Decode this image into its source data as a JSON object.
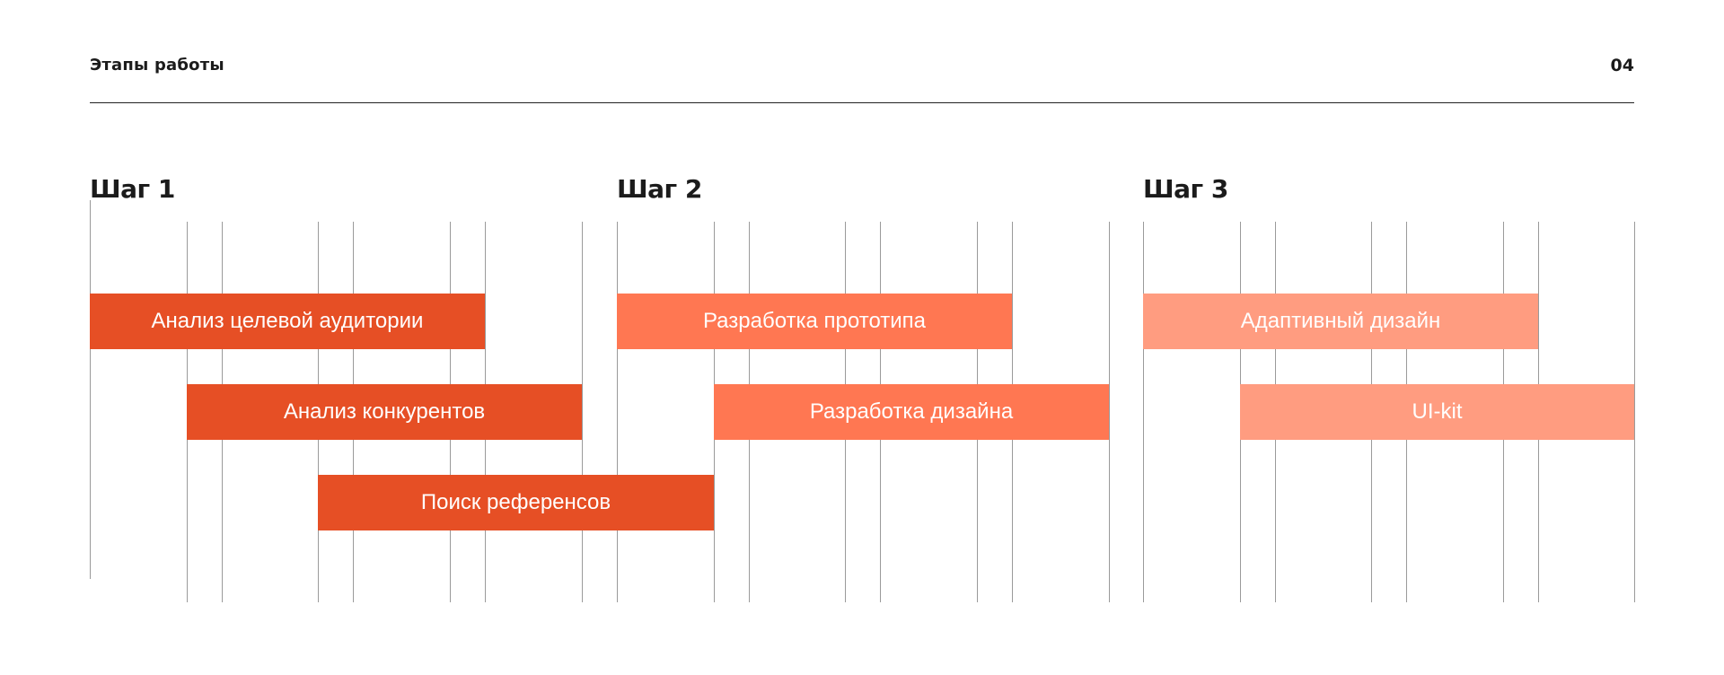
{
  "header": {
    "title": "Этапы работы",
    "page_number": "04"
  },
  "steps": [
    {
      "label": "Шаг 1",
      "color": "#E64F25"
    },
    {
      "label": "Шаг 2",
      "color": "#FF7752"
    },
    {
      "label": "Шаг 3",
      "color": "#FF9C80"
    }
  ],
  "tasks": [
    {
      "label": "Анализ целевой аудитории",
      "step": 0,
      "row": 0,
      "start": 0,
      "end": 6
    },
    {
      "label": "Анализ конкурентов",
      "step": 0,
      "row": 1,
      "start": 1,
      "end": 7
    },
    {
      "label": "Поиск референсов",
      "step": 0,
      "row": 2,
      "start": 3,
      "end": 9
    },
    {
      "label": "Разработка прототипа",
      "step": 1,
      "row": 0,
      "start": 8,
      "end": 14
    },
    {
      "label": "Разработка дизайна",
      "step": 1,
      "row": 1,
      "start": 9,
      "end": 15
    },
    {
      "label": "Адаптивный дизайн",
      "step": 2,
      "row": 0,
      "start": 16,
      "end": 22
    },
    {
      "label": "UI-kit",
      "step": 2,
      "row": 1,
      "start": 17,
      "end": 23
    }
  ]
}
